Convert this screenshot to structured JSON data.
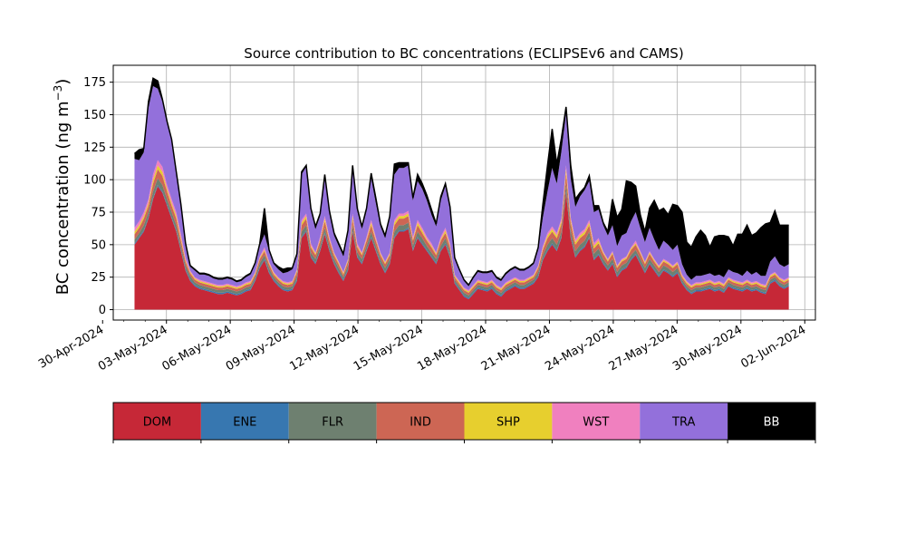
{
  "chart_data": {
    "type": "area",
    "title": "Source contribution to BC concentrations (ECLIPSEv6 and CAMS)",
    "ylabel": "BC concentration (ng m",
    "ylabel_unit_superscript": "−3",
    "ylabel_close": ")",
    "ylim": [
      -8,
      188
    ],
    "yticks": [
      0,
      25,
      50,
      75,
      100,
      125,
      150,
      175
    ],
    "xlim": [
      "2024-04-30T12:00",
      "2024-06-02T12:00"
    ],
    "x_tick_labels": [
      "30-Apr-2024",
      "03-May-2024",
      "06-May-2024",
      "09-May-2024",
      "12-May-2024",
      "15-May-2024",
      "18-May-2024",
      "21-May-2024",
      "24-May-2024",
      "27-May-2024",
      "30-May-2024",
      "02-Jun-2024"
    ],
    "grid": true,
    "stacked": true,
    "x_start": "2024-05-01T12:00",
    "x_end": "2024-06-01T06:00",
    "series": [
      {
        "name": "DOM",
        "color": "#c62837",
        "values": [
          50,
          55,
          60,
          70,
          85,
          95,
          90,
          80,
          70,
          60,
          45,
          30,
          22,
          18,
          16,
          15,
          14,
          13,
          12,
          12,
          13,
          12,
          11,
          12,
          14,
          15,
          22,
          32,
          38,
          28,
          22,
          18,
          15,
          14,
          15,
          22,
          55,
          60,
          40,
          35,
          45,
          58,
          45,
          35,
          28,
          22,
          30,
          60,
          40,
          35,
          45,
          55,
          45,
          35,
          28,
          35,
          55,
          60,
          60,
          62,
          45,
          55,
          50,
          45,
          40,
          35,
          45,
          50,
          40,
          20,
          15,
          10,
          8,
          12,
          16,
          15,
          14,
          16,
          12,
          10,
          14,
          16,
          18,
          16,
          16,
          18,
          20,
          25,
          38,
          45,
          50,
          45,
          55,
          90,
          55,
          40,
          45,
          48,
          55,
          38,
          42,
          35,
          30,
          35,
          25,
          30,
          32,
          38,
          42,
          35,
          28,
          35,
          30,
          25,
          30,
          28,
          25,
          28,
          20,
          15,
          12,
          14,
          14,
          15,
          16,
          14,
          15,
          13,
          18,
          16,
          15,
          14,
          16,
          14,
          15,
          13,
          12,
          20,
          22,
          18,
          16,
          18
        ]
      },
      {
        "name": "ENE",
        "color": "#3777b0",
        "values": [
          1,
          1,
          1,
          1,
          1,
          1,
          1,
          1,
          1,
          1,
          1,
          1,
          1,
          1,
          1,
          1,
          1,
          1,
          1,
          1,
          1,
          1,
          1,
          1,
          1,
          1,
          1,
          1,
          1,
          1,
          1,
          1,
          1,
          1,
          1,
          1,
          1,
          1,
          1,
          1,
          1,
          1,
          1,
          1,
          1,
          1,
          1,
          1,
          1,
          1,
          1,
          1,
          1,
          1,
          1,
          1,
          1,
          1,
          1,
          1,
          1,
          1,
          1,
          1,
          1,
          1,
          1,
          1,
          1,
          1,
          1,
          1,
          1,
          1,
          1,
          1,
          1,
          1,
          1,
          1,
          1,
          1,
          1,
          1,
          1,
          1,
          1,
          1,
          1,
          1,
          1,
          1,
          1,
          1,
          1,
          1,
          1,
          1,
          1,
          1,
          1,
          1,
          1,
          1,
          1,
          1,
          1,
          1,
          1,
          1,
          1,
          1,
          1,
          1,
          1,
          1,
          1,
          1,
          1,
          1,
          1,
          1,
          1,
          1,
          1,
          1,
          1,
          1,
          1,
          1,
          1,
          1,
          1,
          1,
          1,
          1,
          1,
          1,
          1,
          1,
          1,
          1
        ]
      },
      {
        "name": "FLR",
        "color": "#6e8070",
        "values": [
          3,
          3,
          4,
          4,
          5,
          5,
          5,
          4,
          4,
          4,
          3,
          3,
          3,
          2,
          2,
          2,
          2,
          2,
          2,
          2,
          2,
          2,
          2,
          2,
          2,
          2,
          2,
          3,
          3,
          3,
          2,
          2,
          2,
          2,
          2,
          3,
          4,
          4,
          3,
          3,
          3,
          4,
          3,
          3,
          3,
          2,
          3,
          4,
          3,
          3,
          3,
          4,
          3,
          3,
          3,
          3,
          4,
          4,
          4,
          4,
          3,
          4,
          4,
          3,
          3,
          3,
          3,
          4,
          3,
          2,
          2,
          2,
          2,
          2,
          2,
          2,
          2,
          2,
          2,
          2,
          2,
          2,
          2,
          2,
          2,
          2,
          2,
          3,
          3,
          4,
          4,
          4,
          4,
          6,
          5,
          4,
          4,
          4,
          4,
          4,
          4,
          3,
          3,
          3,
          3,
          3,
          3,
          3,
          3,
          3,
          3,
          3,
          3,
          3,
          3,
          3,
          3,
          3,
          2,
          2,
          2,
          2,
          2,
          2,
          2,
          2,
          2,
          2,
          2,
          2,
          2,
          2,
          2,
          2,
          2,
          2,
          2,
          2,
          2,
          2,
          2,
          2
        ]
      },
      {
        "name": "IND",
        "color": "#cd6654",
        "values": [
          4,
          4,
          5,
          5,
          6,
          7,
          7,
          6,
          5,
          5,
          4,
          3,
          2,
          2,
          2,
          2,
          2,
          2,
          2,
          2,
          2,
          2,
          2,
          2,
          2,
          2,
          2,
          3,
          3,
          3,
          2,
          2,
          2,
          2,
          2,
          3,
          5,
          5,
          4,
          3,
          4,
          5,
          4,
          3,
          3,
          2,
          3,
          5,
          4,
          3,
          4,
          5,
          4,
          3,
          3,
          3,
          5,
          5,
          5,
          5,
          4,
          5,
          4,
          4,
          4,
          3,
          4,
          4,
          4,
          2,
          2,
          2,
          2,
          2,
          2,
          2,
          2,
          2,
          2,
          2,
          2,
          2,
          2,
          2,
          2,
          2,
          2,
          3,
          4,
          5,
          5,
          5,
          6,
          8,
          6,
          5,
          5,
          5,
          5,
          4,
          4,
          4,
          3,
          4,
          3,
          3,
          3,
          4,
          4,
          4,
          3,
          4,
          3,
          3,
          3,
          3,
          3,
          3,
          2,
          2,
          2,
          2,
          2,
          2,
          2,
          2,
          2,
          2,
          2,
          2,
          2,
          2,
          2,
          2,
          2,
          2,
          2,
          2,
          2,
          2,
          2,
          2
        ]
      },
      {
        "name": "SHP",
        "color": "#e7cf2e",
        "values": [
          2,
          2,
          2,
          2,
          3,
          3,
          3,
          2,
          2,
          2,
          2,
          1,
          1,
          1,
          1,
          1,
          1,
          1,
          1,
          1,
          1,
          1,
          1,
          1,
          1,
          1,
          1,
          1,
          1,
          1,
          1,
          1,
          1,
          1,
          1,
          1,
          2,
          2,
          1,
          1,
          1,
          2,
          1,
          1,
          1,
          1,
          1,
          2,
          1,
          1,
          1,
          2,
          1,
          1,
          1,
          1,
          2,
          2,
          2,
          2,
          1,
          2,
          2,
          1,
          1,
          1,
          1,
          2,
          1,
          1,
          1,
          1,
          1,
          1,
          1,
          1,
          1,
          1,
          1,
          1,
          1,
          1,
          1,
          1,
          1,
          1,
          1,
          1,
          1,
          2,
          2,
          2,
          2,
          3,
          2,
          2,
          2,
          2,
          2,
          2,
          2,
          1,
          1,
          1,
          1,
          1,
          1,
          1,
          1,
          1,
          1,
          1,
          1,
          1,
          1,
          1,
          1,
          1,
          1,
          1,
          1,
          1,
          1,
          1,
          1,
          1,
          1,
          1,
          1,
          1,
          1,
          1,
          1,
          1,
          1,
          1,
          1,
          1,
          1,
          1,
          1,
          1
        ]
      },
      {
        "name": "WST",
        "color": "#f080bf",
        "values": [
          3,
          3,
          3,
          3,
          4,
          4,
          4,
          3,
          3,
          3,
          3,
          2,
          1,
          1,
          1,
          1,
          1,
          1,
          1,
          1,
          1,
          1,
          1,
          1,
          1,
          1,
          1,
          1,
          2,
          1,
          1,
          1,
          1,
          1,
          1,
          1,
          2,
          2,
          2,
          1,
          2,
          2,
          2,
          1,
          1,
          1,
          1,
          2,
          2,
          1,
          2,
          2,
          2,
          1,
          1,
          1,
          2,
          2,
          2,
          2,
          2,
          2,
          2,
          2,
          2,
          1,
          2,
          2,
          2,
          1,
          1,
          1,
          1,
          1,
          1,
          1,
          1,
          1,
          1,
          1,
          1,
          1,
          1,
          1,
          1,
          1,
          1,
          1,
          2,
          2,
          2,
          2,
          2,
          3,
          2,
          2,
          2,
          2,
          2,
          2,
          2,
          1,
          1,
          1,
          1,
          1,
          1,
          1,
          2,
          1,
          1,
          1,
          1,
          1,
          1,
          1,
          1,
          1,
          1,
          1,
          1,
          1,
          1,
          1,
          1,
          1,
          1,
          1,
          1,
          1,
          1,
          1,
          1,
          1,
          1,
          1,
          1,
          1,
          1,
          1,
          1,
          1
        ]
      },
      {
        "name": "TRA",
        "color": "#9370db",
        "values": [
          53,
          47,
          46,
          70,
          68,
          55,
          50,
          48,
          45,
          30,
          22,
          10,
          3,
          5,
          4,
          5,
          5,
          4,
          4,
          4,
          4,
          4,
          3,
          3,
          4,
          5,
          6,
          8,
          10,
          8,
          6,
          6,
          6,
          8,
          9,
          10,
          35,
          36,
          25,
          18,
          16,
          30,
          18,
          13,
          12,
          12,
          20,
          35,
          25,
          18,
          20,
          32,
          26,
          20,
          18,
          26,
          35,
          35,
          35,
          35,
          28,
          30,
          30,
          28,
          22,
          20,
          28,
          32,
          26,
          12,
          8,
          5,
          3,
          5,
          6,
          6,
          7,
          6,
          5,
          5,
          6,
          7,
          7,
          7,
          7,
          7,
          8,
          12,
          22,
          32,
          45,
          38,
          52,
          40,
          30,
          25,
          28,
          30,
          30,
          24,
          22,
          20,
          18,
          20,
          15,
          18,
          18,
          20,
          22,
          18,
          15,
          18,
          15,
          12,
          14,
          13,
          12,
          13,
          8,
          5,
          4,
          5,
          5,
          5,
          5,
          5,
          5,
          5,
          6,
          6,
          6,
          5,
          7,
          6,
          7,
          6,
          7,
          10,
          12,
          10,
          10,
          10
        ]
      },
      {
        "name": "BB",
        "color": "#000000",
        "values": [
          4,
          8,
          3,
          5,
          6,
          6,
          2,
          1,
          1,
          1,
          1,
          1,
          1,
          1,
          1,
          1,
          1,
          1,
          1,
          1,
          1,
          1,
          1,
          1,
          1,
          1,
          1,
          2,
          20,
          1,
          1,
          2,
          3,
          3,
          1,
          2,
          2,
          1,
          2,
          2,
          2,
          2,
          2,
          2,
          2,
          2,
          2,
          2,
          2,
          2,
          2,
          4,
          4,
          2,
          2,
          2,
          8,
          4,
          4,
          2,
          2,
          5,
          4,
          4,
          4,
          2,
          3,
          2,
          2,
          1,
          1,
          1,
          1,
          1,
          1,
          1,
          1,
          1,
          1,
          1,
          1,
          1,
          1,
          1,
          1,
          1,
          1,
          2,
          10,
          20,
          30,
          15,
          10,
          5,
          10,
          6,
          3,
          2,
          4,
          5,
          3,
          2,
          3,
          20,
          22,
          20,
          40,
          30,
          20,
          10,
          8,
          15,
          30,
          30,
          25,
          23,
          35,
          30,
          40,
          25,
          25,
          30,
          35,
          30,
          20,
          30,
          30,
          32,
          25,
          20,
          30,
          32,
          35,
          30,
          30,
          37,
          40,
          30,
          35,
          30,
          32,
          30
        ]
      }
    ]
  },
  "colorbar": {
    "labels": [
      "DOM",
      "ENE",
      "FLR",
      "IND",
      "SHP",
      "WST",
      "TRA",
      "BB"
    ],
    "colors": [
      "#c62837",
      "#3777b0",
      "#6e8070",
      "#cd6654",
      "#e7cf2e",
      "#f080bf",
      "#9370db",
      "#000000"
    ],
    "text_colors": [
      "#000000",
      "#000000",
      "#000000",
      "#000000",
      "#000000",
      "#000000",
      "#000000",
      "#ffffff"
    ]
  }
}
